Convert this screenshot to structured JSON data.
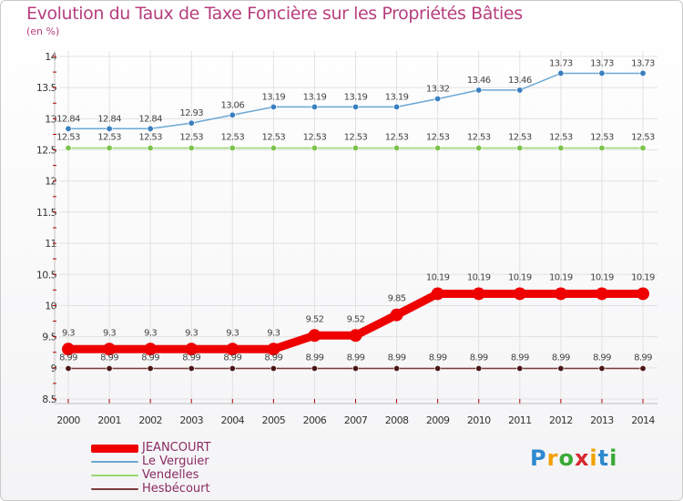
{
  "chart_data": {
    "type": "line",
    "title": "Evolution du Taux de Taxe Foncière sur les Propriétés Bâties",
    "subtitle": "(en %)",
    "xlabel": "",
    "ylabel": "(en %)",
    "ylim": [
      8.5,
      14
    ],
    "y_ticks": [
      "8.5",
      "9",
      "9.5",
      "10",
      "10.5",
      "11",
      "11.5",
      "12",
      "12.5",
      "13",
      "13.5",
      "14"
    ],
    "grid": true,
    "legend_position": "bottom-left",
    "categories": [
      "2000",
      "2001",
      "2002",
      "2003",
      "2004",
      "2005",
      "2006",
      "2007",
      "2008",
      "2009",
      "2010",
      "2011",
      "2012",
      "2013",
      "2014"
    ],
    "series": [
      {
        "name": "Le Verguier",
        "color": "#6aa8d4",
        "marker": "#3a7fc0",
        "values": [
          12.84,
          12.84,
          12.84,
          12.93,
          13.06,
          13.19,
          13.19,
          13.19,
          13.19,
          13.32,
          13.46,
          13.46,
          13.73,
          13.73,
          13.73
        ],
        "labels": [
          "12.84",
          "12.84",
          "12.84",
          "12.93",
          "13.06",
          "13.19",
          "13.19",
          "13.19",
          "13.19",
          "13.32",
          "13.46",
          "13.46",
          "13.73",
          "13.73",
          "13.73"
        ]
      },
      {
        "name": "Vendelles",
        "color": "#98d870",
        "marker": "#7cc24c",
        "values": [
          12.53,
          12.53,
          12.53,
          12.53,
          12.53,
          12.53,
          12.53,
          12.53,
          12.53,
          12.53,
          12.53,
          12.53,
          12.53,
          12.53,
          12.53
        ],
        "labels": [
          "12.53",
          "12.53",
          "12.53",
          "12.53",
          "12.53",
          "12.53",
          "12.53",
          "12.53",
          "12.53",
          "12.53",
          "12.53",
          "12.53",
          "12.53",
          "12.53",
          "12.53"
        ]
      },
      {
        "name": "Hesbécourt",
        "color": "#7a3b3b",
        "marker": "#4a1616",
        "values": [
          8.99,
          8.99,
          8.99,
          8.99,
          8.99,
          8.99,
          8.99,
          8.99,
          8.99,
          8.99,
          8.99,
          8.99,
          8.99,
          8.99,
          8.99
        ],
        "labels": [
          "8.99",
          "8.99",
          "8.99",
          "8.99",
          "8.99",
          "8.99",
          "8.99",
          "8.99",
          "8.99",
          "8.99",
          "8.99",
          "8.99",
          "8.99",
          "8.99",
          "8.99"
        ]
      },
      {
        "name": "JEANCOURT",
        "color": "#ee0000",
        "marker": "#ee0000",
        "emphasis": true,
        "values": [
          9.3,
          9.3,
          9.3,
          9.3,
          9.3,
          9.3,
          9.52,
          9.52,
          9.85,
          10.19,
          10.19,
          10.19,
          10.19,
          10.19,
          10.19
        ],
        "labels": [
          "9.3",
          "9.3",
          "9.3",
          "9.3",
          "9.3",
          "9.3",
          "9.52",
          "9.52",
          "9.85",
          "10.19",
          "10.19",
          "10.19",
          "10.19",
          "10.19",
          "10.19"
        ]
      }
    ],
    "legend": [
      {
        "name": "JEANCOURT",
        "color": "#ee0000",
        "emphasis": true
      },
      {
        "name": "Le Verguier",
        "color": "#6aa8d4",
        "emphasis": false
      },
      {
        "name": "Vendelles",
        "color": "#98d870",
        "emphasis": false
      },
      {
        "name": "Hesbécourt",
        "color": "#7a3b3b",
        "emphasis": false
      }
    ]
  },
  "logo": {
    "letters": [
      "P",
      "r",
      "o",
      "x",
      "i",
      "t",
      "i"
    ],
    "colors": [
      "#2e8ad0",
      "#f2a000",
      "#3aaa35",
      "#d8282f",
      "#f2a000",
      "#2e8ad0",
      "#3aaa35"
    ]
  }
}
